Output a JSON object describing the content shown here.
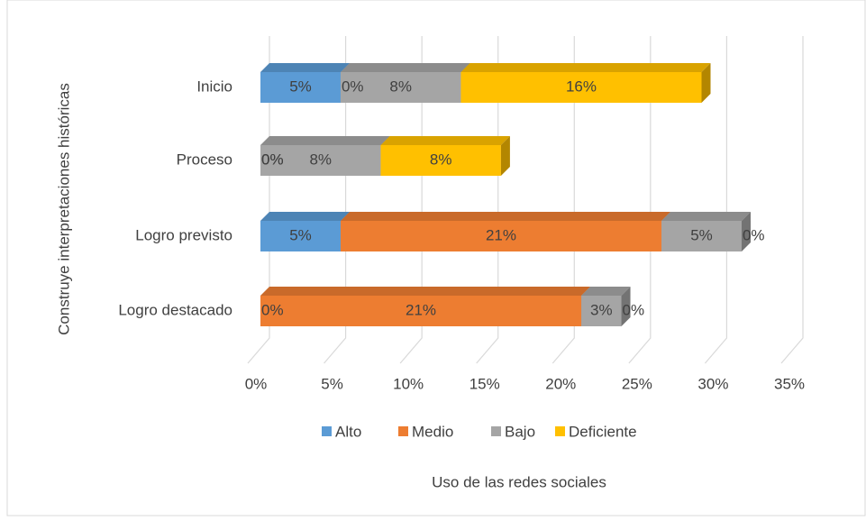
{
  "chart_data": {
    "type": "bar3d_stacked_horizontal",
    "categories": [
      "Inicio",
      "Proceso",
      "Logro previsto",
      "Logro destacado"
    ],
    "series": [
      {
        "name": "Alto",
        "color": "#5b9bd5",
        "values": [
          5.26,
          0,
          5.26,
          0
        ],
        "value_labels": [
          "5%",
          "0%",
          "5%",
          "0%"
        ]
      },
      {
        "name": "Medio",
        "color": "#ed7d31",
        "values": [
          0,
          0,
          21.05,
          21.05
        ],
        "value_labels": [
          "0%",
          "0%",
          "21%",
          "21%"
        ]
      },
      {
        "name": "Bajo",
        "color": "#a5a5a5",
        "values": [
          7.89,
          7.89,
          5.26,
          2.63
        ],
        "value_labels": [
          "8%",
          "8%",
          "5%",
          "3%"
        ]
      },
      {
        "name": "Deficiente",
        "color": "#ffc000",
        "values": [
          15.79,
          7.89,
          0,
          0
        ],
        "value_labels": [
          "16%",
          "8%",
          "0%",
          "0%"
        ]
      }
    ],
    "xlabel": "Uso de las redes sociales",
    "ylabel": "Construye interpretaciones históricas",
    "xlim": [
      0,
      35
    ],
    "xticks": [
      {
        "value": 0,
        "label": "0%"
      },
      {
        "value": 5,
        "label": "5%"
      },
      {
        "value": 10,
        "label": "10%"
      },
      {
        "value": 15,
        "label": "15%"
      },
      {
        "value": 20,
        "label": "20%"
      },
      {
        "value": 25,
        "label": "25%"
      },
      {
        "value": 30,
        "label": "30%"
      },
      {
        "value": 35,
        "label": "35%"
      }
    ],
    "grid": true,
    "legend": "bottom"
  }
}
